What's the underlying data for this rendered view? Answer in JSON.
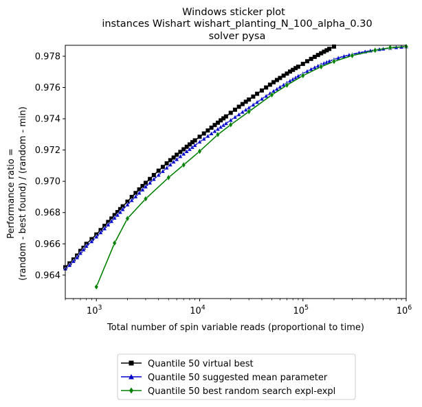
{
  "chart_data": {
    "type": "line",
    "title_lines": [
      "Windows sticker plot",
      "instances Wishart wishart_planting_N_100_alpha_0.30",
      "solver pysa"
    ],
    "xlabel": "Total number of spin variable reads (proportional to time)",
    "ylabel_lines": [
      "Performance ratio =",
      "(random - best found) / (random - min)"
    ],
    "xscale": "log",
    "xlim": [
      500,
      1000000
    ],
    "ylim": [
      0.9625,
      0.9787
    ],
    "x_ticks": [
      {
        "value": 1000,
        "base": "10",
        "exp": "3"
      },
      {
        "value": 10000,
        "base": "10",
        "exp": "4"
      },
      {
        "value": 100000,
        "base": "10",
        "exp": "5"
      },
      {
        "value": 1000000,
        "base": "10",
        "exp": "6"
      }
    ],
    "y_ticks": [
      {
        "value": 0.964,
        "label": "0.964"
      },
      {
        "value": 0.966,
        "label": "0.966"
      },
      {
        "value": 0.968,
        "label": "0.968"
      },
      {
        "value": 0.97,
        "label": "0.970"
      },
      {
        "value": 0.972,
        "label": "0.972"
      },
      {
        "value": 0.974,
        "label": "0.974"
      },
      {
        "value": 0.976,
        "label": "0.976"
      },
      {
        "value": 0.978,
        "label": "0.978"
      }
    ],
    "legend_position": "below-center",
    "series": [
      {
        "name": "Quantile 50 virtual best",
        "color": "#000000",
        "marker": "square",
        "x": [
          500,
          550,
          600,
          650,
          700,
          750,
          800,
          900,
          1000,
          1100,
          1200,
          1300,
          1400,
          1500,
          1600,
          1700,
          1800,
          2000,
          2200,
          2400,
          2600,
          2800,
          3000,
          3300,
          3600,
          4000,
          4400,
          4800,
          5200,
          5600,
          6000,
          6500,
          7000,
          7500,
          8000,
          8500,
          9000,
          10000,
          11000,
          12000,
          13000,
          14000,
          15000,
          16000,
          17000,
          18000,
          20000,
          22000,
          24000,
          26000,
          28000,
          30000,
          33000,
          36000,
          40000,
          44000,
          48000,
          52000,
          56000,
          60000,
          65000,
          70000,
          75000,
          80000,
          85000,
          90000,
          100000,
          110000,
          120000,
          130000,
          140000,
          150000,
          160000,
          170000,
          180000,
          200000
        ],
        "y": [
          0.9645,
          0.96475,
          0.965,
          0.96525,
          0.96555,
          0.96575,
          0.966,
          0.9663,
          0.9666,
          0.96688,
          0.96715,
          0.9674,
          0.96762,
          0.96784,
          0.96803,
          0.96822,
          0.9684,
          0.9687,
          0.969,
          0.96925,
          0.96948,
          0.9697,
          0.9699,
          0.97015,
          0.9704,
          0.97068,
          0.97092,
          0.97115,
          0.97135,
          0.97152,
          0.9717,
          0.97188,
          0.97205,
          0.97221,
          0.97236,
          0.9725,
          0.97262,
          0.97285,
          0.97306,
          0.97325,
          0.97343,
          0.9736,
          0.97375,
          0.9739,
          0.97403,
          0.97415,
          0.97438,
          0.97458,
          0.97477,
          0.97494,
          0.97509,
          0.97523,
          0.97542,
          0.9756,
          0.97581,
          0.976,
          0.97618,
          0.97634,
          0.97648,
          0.97661,
          0.97676,
          0.97689,
          0.97702,
          0.97713,
          0.97724,
          0.97733,
          0.97751,
          0.97768,
          0.97783,
          0.97796,
          0.97808,
          0.97819,
          0.97829,
          0.97838,
          0.97847,
          0.97862
        ]
      },
      {
        "name": "Quantile 50 suggested mean parameter",
        "color": "#0000cc",
        "marker": "triangle",
        "x": [
          500,
          550,
          600,
          650,
          700,
          750,
          800,
          900,
          1000,
          1100,
          1200,
          1300,
          1400,
          1500,
          1600,
          1700,
          1800,
          2000,
          2200,
          2400,
          2600,
          2800,
          3000,
          3300,
          3600,
          4000,
          4400,
          4800,
          5200,
          5600,
          6000,
          6500,
          7000,
          7500,
          8000,
          8500,
          9000,
          10000,
          11000,
          12000,
          13000,
          14000,
          15000,
          16000,
          17000,
          18000,
          20000,
          22000,
          24000,
          26000,
          28000,
          30000,
          33000,
          36000,
          40000,
          44000,
          48000,
          52000,
          56000,
          60000,
          65000,
          70000,
          75000,
          80000,
          85000,
          90000,
          100000,
          110000,
          120000,
          130000,
          140000,
          150000,
          160000,
          170000,
          180000,
          200000,
          220000,
          250000,
          280000,
          300000,
          350000,
          400000,
          450000,
          500000,
          550000,
          600000,
          700000,
          800000,
          900000,
          1000000
        ],
        "y": [
          0.9644,
          0.96463,
          0.96488,
          0.96512,
          0.9654,
          0.96562,
          0.96585,
          0.96615,
          0.96645,
          0.96672,
          0.96697,
          0.96722,
          0.96744,
          0.96765,
          0.96784,
          0.96802,
          0.9682,
          0.9685,
          0.96878,
          0.96902,
          0.96925,
          0.96946,
          0.96965,
          0.9699,
          0.97013,
          0.9704,
          0.97064,
          0.97086,
          0.97106,
          0.97124,
          0.9714,
          0.97159,
          0.97175,
          0.97191,
          0.97205,
          0.97218,
          0.9723,
          0.97252,
          0.97271,
          0.97289,
          0.97305,
          0.9732,
          0.97334,
          0.97347,
          0.97359,
          0.9737,
          0.97391,
          0.9741,
          0.97427,
          0.97443,
          0.97457,
          0.9747,
          0.97489,
          0.97506,
          0.97527,
          0.97545,
          0.97562,
          0.97577,
          0.9759,
          0.97603,
          0.97617,
          0.9763,
          0.97642,
          0.97653,
          0.97663,
          0.97673,
          0.97689,
          0.97704,
          0.97717,
          0.97728,
          0.97738,
          0.97747,
          0.97755,
          0.97762,
          0.97768,
          0.9778,
          0.97789,
          0.978,
          0.97808,
          0.97813,
          0.97822,
          0.97829,
          0.97835,
          0.9784,
          0.97844,
          0.97847,
          0.97852,
          0.97856,
          0.97859,
          0.97861
        ]
      },
      {
        "name": "Quantile 50  best random search expl-expl",
        "color": "#008000",
        "marker": "diamond",
        "x": [
          1000,
          1500,
          2000,
          3000,
          5000,
          7000,
          10000,
          15000,
          20000,
          30000,
          50000,
          70000,
          100000,
          150000,
          200000,
          300000,
          500000,
          700000,
          1000000
        ],
        "y": [
          0.96325,
          0.96605,
          0.96762,
          0.96888,
          0.97024,
          0.97105,
          0.97192,
          0.97299,
          0.97362,
          0.97446,
          0.97553,
          0.97615,
          0.97676,
          0.97733,
          0.97767,
          0.97804,
          0.97838,
          0.97855,
          0.97862
        ]
      }
    ]
  }
}
